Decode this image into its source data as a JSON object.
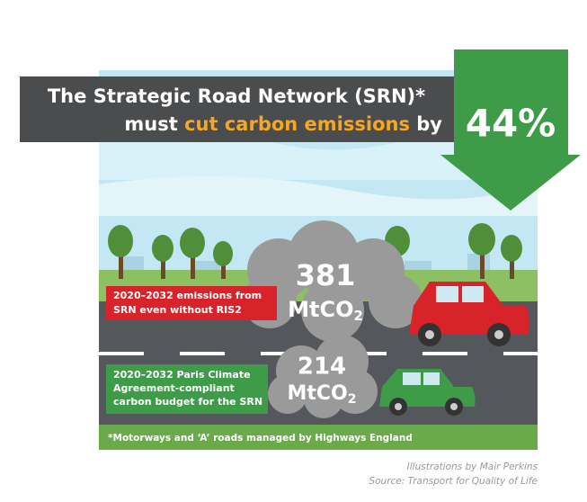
{
  "header": {
    "title_line1": "The Strategic Road Network (SRN)*",
    "title_line2_before": "must",
    "title_line2_highlight": "cut carbon emissions",
    "title_line2_after": "by",
    "reduction": "44%"
  },
  "emissions": [
    {
      "label_lines": [
        "2020–2032 emissions from",
        "SRN even without RIS2"
      ],
      "value": 381,
      "unit": "MtCO",
      "subscript": "2"
    },
    {
      "label_lines": [
        "2020–2032 Paris Climate",
        "Agreement-compliant",
        "carbon budget for the SRN"
      ],
      "value": 214,
      "unit": "MtCO",
      "subscript": "2"
    }
  ],
  "footnote": "*Motorways and ‘A’ roads managed by Highways England",
  "credits": [
    "Illustrations by Mair Perkins",
    "Source: Transport for Quality of Life"
  ]
}
